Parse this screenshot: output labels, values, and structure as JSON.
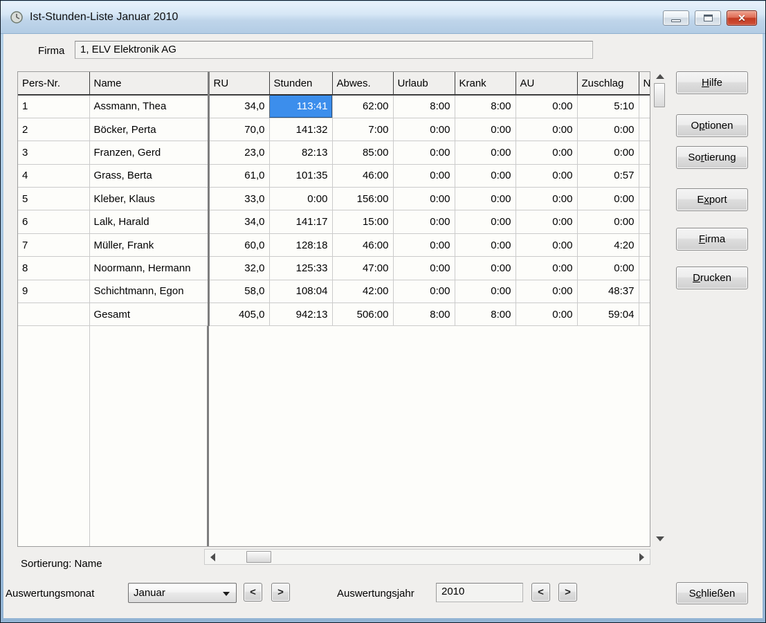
{
  "window": {
    "title": "Ist-Stunden-Liste Januar 2010",
    "close_glyph": "✕"
  },
  "header": {
    "firma_label": "Firma",
    "firma_value": "1, ELV Elektronik AG"
  },
  "table": {
    "columns": [
      {
        "label": "Pers-Nr.",
        "align": "left"
      },
      {
        "label": "Name",
        "align": "left"
      },
      {
        "label": "RU",
        "align": "right"
      },
      {
        "label": "Stunden",
        "align": "right"
      },
      {
        "label": "Abwes.",
        "align": "right"
      },
      {
        "label": "Urlaub",
        "align": "right"
      },
      {
        "label": "Krank",
        "align": "right"
      },
      {
        "label": "AU",
        "align": "right"
      },
      {
        "label": "Zuschlag",
        "align": "right"
      },
      {
        "label": "N",
        "align": "left"
      }
    ],
    "rows": [
      [
        "1",
        "Assmann, Thea",
        "34,0",
        "113:41",
        "62:00",
        "8:00",
        "8:00",
        "0:00",
        "5:10",
        ""
      ],
      [
        "2",
        "Böcker, Perta",
        "70,0",
        "141:32",
        "7:00",
        "0:00",
        "0:00",
        "0:00",
        "0:00",
        ""
      ],
      [
        "3",
        "Franzen, Gerd",
        "23,0",
        "82:13",
        "85:00",
        "0:00",
        "0:00",
        "0:00",
        "0:00",
        ""
      ],
      [
        "4",
        "Grass, Berta",
        "61,0",
        "101:35",
        "46:00",
        "0:00",
        "0:00",
        "0:00",
        "0:57",
        ""
      ],
      [
        "5",
        "Kleber, Klaus",
        "33,0",
        "0:00",
        "156:00",
        "0:00",
        "0:00",
        "0:00",
        "0:00",
        ""
      ],
      [
        "6",
        "Lalk, Harald",
        "34,0",
        "141:17",
        "15:00",
        "0:00",
        "0:00",
        "0:00",
        "0:00",
        ""
      ],
      [
        "7",
        "Müller, Frank",
        "60,0",
        "128:18",
        "46:00",
        "0:00",
        "0:00",
        "0:00",
        "4:20",
        ""
      ],
      [
        "8",
        "Noormann, Hermann",
        "32,0",
        "125:33",
        "47:00",
        "0:00",
        "0:00",
        "0:00",
        "0:00",
        ""
      ],
      [
        "9",
        "Schichtmann, Egon",
        "58,0",
        "108:04",
        "42:00",
        "0:00",
        "0:00",
        "0:00",
        "48:37",
        ""
      ],
      [
        "",
        "Gesamt",
        "405,0",
        "942:13",
        "506:00",
        "8:00",
        "8:00",
        "0:00",
        "59:04",
        ""
      ]
    ],
    "selected": {
      "row": 0,
      "col": 3,
      "value": "113:41",
      "selection_color": "#3c8eec"
    }
  },
  "buttons": {
    "hilfe": {
      "label": "Hilfe",
      "underline": 0
    },
    "optionen": {
      "label": "Optionen",
      "underline": 1
    },
    "sortierung": {
      "label": "Sortierung",
      "underline": 2
    },
    "export": {
      "label": "Export",
      "underline": 1
    },
    "firma": {
      "label": "Firma",
      "underline": 0
    },
    "drucken": {
      "label": "Drucken",
      "underline": 0
    },
    "schliessen": {
      "label": "Schließen",
      "underline": 1
    }
  },
  "footer": {
    "sortierung_status": "Sortierung: Name",
    "monat_label": "Auswertungsmonat",
    "monat_value": "Januar",
    "jahr_label": "Auswertungsjahr",
    "jahr_value": "2010",
    "prev_symbol": "<",
    "next_symbol": ">"
  }
}
